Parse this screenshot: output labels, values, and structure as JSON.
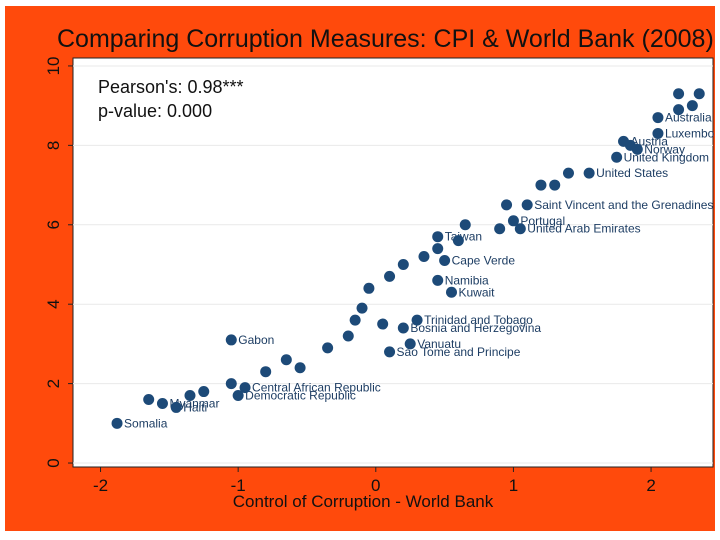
{
  "chart_data": {
    "type": "scatter",
    "title": "Comparing Corruption Measures: CPI & World Bank (2008)",
    "xlabel": "Control of Corruption - World Bank",
    "ylabel": "",
    "xlim": [
      -2.2,
      2.45
    ],
    "ylim": [
      -0.1,
      10.2
    ],
    "x_ticks": [
      -2,
      -1,
      0,
      1,
      2
    ],
    "y_ticks": [
      0,
      2,
      4,
      6,
      8,
      10
    ],
    "grid": true,
    "legend": "none",
    "marker_color": "#1d4a78",
    "annotations": {
      "pearson": "Pearson's: 0.98***",
      "p_value": "p-value: 0.000"
    },
    "points": [
      {
        "x": -1.88,
        "y": 1.0,
        "label": "Somalia"
      },
      {
        "x": -1.65,
        "y": 1.6,
        "label": ""
      },
      {
        "x": -1.55,
        "y": 1.5,
        "label": "Myanmar"
      },
      {
        "x": -1.45,
        "y": 1.4,
        "label": "Haiti"
      },
      {
        "x": -1.35,
        "y": 1.7,
        "label": ""
      },
      {
        "x": -1.25,
        "y": 1.8,
        "label": ""
      },
      {
        "x": -1.05,
        "y": 2.0,
        "label": ""
      },
      {
        "x": -0.95,
        "y": 1.9,
        "label": "Central African Republic"
      },
      {
        "x": -1.0,
        "y": 1.7,
        "label": "Democratic Republic"
      },
      {
        "x": -0.8,
        "y": 2.3,
        "label": ""
      },
      {
        "x": -0.65,
        "y": 2.6,
        "label": ""
      },
      {
        "x": -0.55,
        "y": 2.4,
        "label": ""
      },
      {
        "x": -1.05,
        "y": 3.1,
        "label": "Gabon"
      },
      {
        "x": -0.35,
        "y": 2.9,
        "label": ""
      },
      {
        "x": -0.2,
        "y": 3.2,
        "label": ""
      },
      {
        "x": -0.15,
        "y": 3.6,
        "label": ""
      },
      {
        "x": -0.1,
        "y": 3.9,
        "label": ""
      },
      {
        "x": 0.05,
        "y": 3.5,
        "label": ""
      },
      {
        "x": 0.2,
        "y": 3.4,
        "label": "Bosnia and Herzegovina"
      },
      {
        "x": 0.25,
        "y": 3.0,
        "label": "Vanuatu"
      },
      {
        "x": 0.1,
        "y": 2.8,
        "label": "Sao Tome and Principe"
      },
      {
        "x": 0.3,
        "y": 3.6,
        "label": "Trinidad and Tobago"
      },
      {
        "x": -0.05,
        "y": 4.4,
        "label": ""
      },
      {
        "x": 0.55,
        "y": 4.3,
        "label": "Kuwait"
      },
      {
        "x": 0.45,
        "y": 4.6,
        "label": "Namibia"
      },
      {
        "x": 0.1,
        "y": 4.7,
        "label": ""
      },
      {
        "x": 0.2,
        "y": 5.0,
        "label": ""
      },
      {
        "x": 0.35,
        "y": 5.2,
        "label": ""
      },
      {
        "x": 0.5,
        "y": 5.1,
        "label": "Cape Verde"
      },
      {
        "x": 0.45,
        "y": 5.4,
        "label": ""
      },
      {
        "x": 0.6,
        "y": 5.6,
        "label": ""
      },
      {
        "x": 0.45,
        "y": 5.7,
        "label": "Taiwan"
      },
      {
        "x": 0.65,
        "y": 6.0,
        "label": ""
      },
      {
        "x": 0.9,
        "y": 5.9,
        "label": ""
      },
      {
        "x": 1.0,
        "y": 6.1,
        "label": "Portugal"
      },
      {
        "x": 1.05,
        "y": 5.9,
        "label": "United Arab Emirates"
      },
      {
        "x": 0.95,
        "y": 6.5,
        "label": ""
      },
      {
        "x": 1.1,
        "y": 6.5,
        "label": "Saint Vincent and the Grenadines"
      },
      {
        "x": 1.2,
        "y": 7.0,
        "label": ""
      },
      {
        "x": 1.3,
        "y": 7.0,
        "label": ""
      },
      {
        "x": 1.4,
        "y": 7.3,
        "label": ""
      },
      {
        "x": 1.55,
        "y": 7.3,
        "label": "United States"
      },
      {
        "x": 1.75,
        "y": 7.7,
        "label": "United Kingdom"
      },
      {
        "x": 1.85,
        "y": 8.0,
        "label": ""
      },
      {
        "x": 1.9,
        "y": 7.9,
        "label": "Norway"
      },
      {
        "x": 1.8,
        "y": 8.1,
        "label": "Austria"
      },
      {
        "x": 2.05,
        "y": 8.3,
        "label": "Luxembourg"
      },
      {
        "x": 2.05,
        "y": 8.7,
        "label": "Australia"
      },
      {
        "x": 2.2,
        "y": 8.9,
        "label": ""
      },
      {
        "x": 2.3,
        "y": 9.0,
        "label": ""
      },
      {
        "x": 2.2,
        "y": 9.3,
        "label": ""
      },
      {
        "x": 2.35,
        "y": 9.3,
        "label": ""
      }
    ]
  }
}
